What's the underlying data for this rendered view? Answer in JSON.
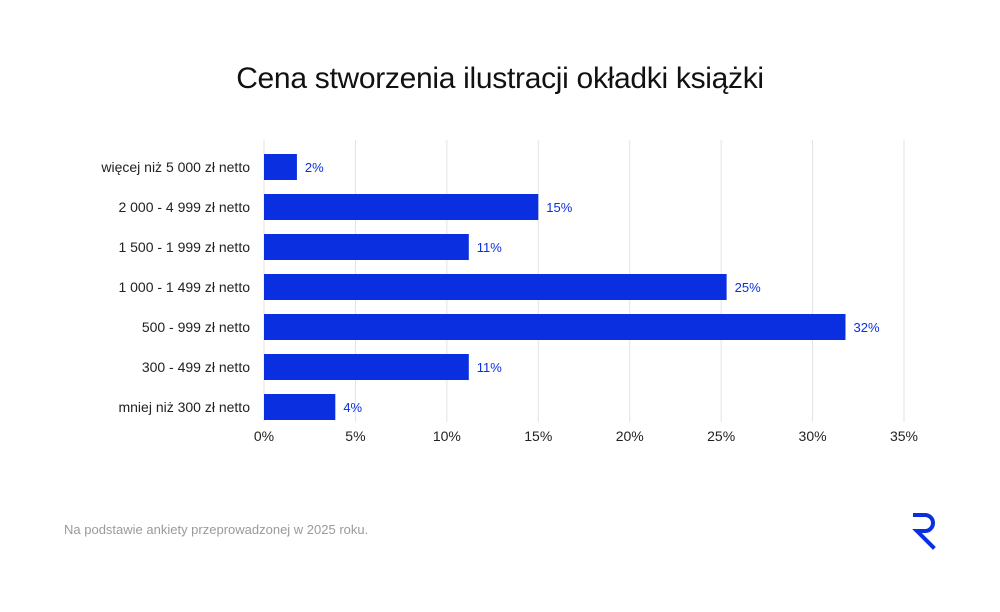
{
  "title": "Cena stworzenia ilustracji okładki książki",
  "footnote": "Na podstawie ankiety przeprowadzonej w 2025 roku.",
  "logo": {
    "icon": "r-logo-icon",
    "color": "#0a2fe0"
  },
  "chart_data": {
    "type": "bar",
    "orientation": "horizontal",
    "categories": [
      "więcej niż 5 000 zł netto",
      "2 000 - 4 999 zł netto",
      "1 500 - 1 999 zł netto",
      "1 000 - 1 499 zł netto",
      "500 - 999 zł netto",
      "300 - 499 zł netto",
      "mniej niż 300 zł netto"
    ],
    "values": [
      1.8,
      15,
      11.2,
      25.3,
      31.8,
      11.2,
      3.9
    ],
    "data_labels": [
      "2%",
      "15%",
      "11%",
      "25%",
      "32%",
      "11%",
      "4%"
    ],
    "xlim": [
      0,
      35
    ],
    "x_ticks": [
      0,
      5,
      10,
      15,
      20,
      25,
      30,
      35
    ],
    "x_tick_labels": [
      "0%",
      "5%",
      "10%",
      "15%",
      "20%",
      "25%",
      "30%",
      "35%"
    ],
    "grid": true,
    "bar_color": "#0a2fe0",
    "label_color": "#0a2fe0"
  }
}
